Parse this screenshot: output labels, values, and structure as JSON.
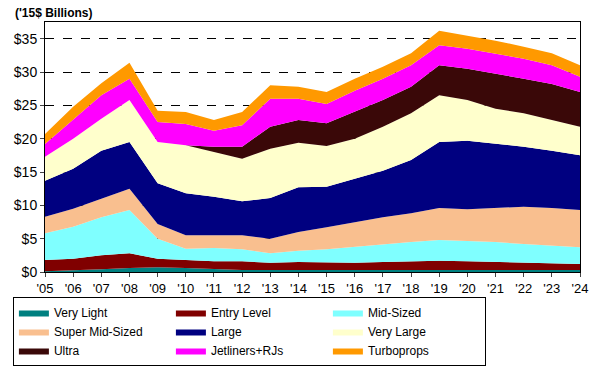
{
  "chart_data": {
    "type": "area",
    "stacked": true,
    "ylabel": "('15$ Billions)",
    "categories": [
      "'05",
      "'06",
      "'07",
      "'08",
      "'09",
      "'10",
      "'11",
      "'12",
      "'13",
      "'14",
      "'15",
      "'16",
      "'17",
      "'18",
      "'19",
      "'20",
      "'21",
      "'22",
      "'23",
      "'24"
    ],
    "ylim": [
      0,
      37.5
    ],
    "yticks": [
      {
        "value": 0,
        "label": "$0"
      },
      {
        "value": 5,
        "label": "$5"
      },
      {
        "value": 10,
        "label": "$10"
      },
      {
        "value": 15,
        "label": "$15"
      },
      {
        "value": 20,
        "label": "$20"
      },
      {
        "value": 25,
        "label": "$25"
      },
      {
        "value": 30,
        "label": "$30"
      },
      {
        "value": 35,
        "label": "$35"
      }
    ],
    "grid": true,
    "legend": "bottom",
    "series": [
      {
        "name": "Very Light",
        "color": "#008080",
        "values": [
          0.1,
          0.2,
          0.4,
          0.6,
          0.7,
          0.6,
          0.4,
          0.3,
          0.3,
          0.3,
          0.3,
          0.3,
          0.3,
          0.3,
          0.3,
          0.3,
          0.3,
          0.3,
          0.3,
          0.3
        ]
      },
      {
        "name": "Entry Level",
        "color": "#800000",
        "values": [
          1.7,
          1.8,
          2.1,
          2.2,
          1.3,
          1.2,
          1.2,
          1.3,
          1.1,
          1.2,
          1.1,
          1.1,
          1.2,
          1.3,
          1.4,
          1.3,
          1.2,
          1.1,
          1.0,
          0.9
        ]
      },
      {
        "name": "Mid-Sized",
        "color": "#7FFFFF",
        "values": [
          4.0,
          4.8,
          5.7,
          6.5,
          3.0,
          1.7,
          2.0,
          1.8,
          1.4,
          1.7,
          2.0,
          2.4,
          2.7,
          2.9,
          3.1,
          3.1,
          3.0,
          2.8,
          2.7,
          2.5
        ]
      },
      {
        "name": "Super Mid-Sized",
        "color": "#F9BF8F",
        "values": [
          2.5,
          2.7,
          2.8,
          3.2,
          2.2,
          2.0,
          1.9,
          2.1,
          2.2,
          2.8,
          3.3,
          3.7,
          4.0,
          4.3,
          4.8,
          4.7,
          5.1,
          5.6,
          5.6,
          5.6
        ]
      },
      {
        "name": "Large",
        "color": "#000080",
        "values": [
          5.4,
          6.0,
          7.2,
          7.0,
          6.1,
          6.3,
          5.8,
          5.1,
          6.1,
          6.7,
          6.1,
          6.5,
          7.0,
          8.0,
          9.9,
          10.3,
          9.7,
          9.0,
          8.6,
          8.2
        ]
      },
      {
        "name": "Very Large",
        "color": "#FFFFCC",
        "values": [
          3.6,
          4.5,
          4.8,
          6.3,
          6.2,
          7.2,
          6.7,
          6.4,
          7.4,
          6.7,
          6.1,
          6.0,
          6.6,
          7.0,
          7.0,
          6.1,
          5.2,
          5.0,
          4.6,
          4.3
        ]
      },
      {
        "name": "Ultra",
        "color": "#3A0808",
        "values": [
          0,
          0,
          0,
          0,
          0,
          0,
          0.8,
          1.8,
          3.3,
          3.4,
          3.4,
          4.0,
          4.0,
          4.0,
          4.5,
          4.7,
          5.3,
          5.2,
          5.4,
          5.2
        ]
      },
      {
        "name": "Jetliners+RJs",
        "color": "#FF00FF",
        "values": [
          1.9,
          2.8,
          3.5,
          3.2,
          3.0,
          3.2,
          2.4,
          3.2,
          4.2,
          3.2,
          2.9,
          3.2,
          3.2,
          3.2,
          3.0,
          3.0,
          3.0,
          3.0,
          2.8,
          2.3
        ]
      },
      {
        "name": "Turboprops",
        "color": "#FF9900",
        "values": [
          1.5,
          2.0,
          1.8,
          2.4,
          1.7,
          1.8,
          1.6,
          2.0,
          2.0,
          1.8,
          1.8,
          1.8,
          1.8,
          1.8,
          2.2,
          2.0,
          1.9,
          1.8,
          1.8,
          1.7
        ]
      }
    ]
  }
}
